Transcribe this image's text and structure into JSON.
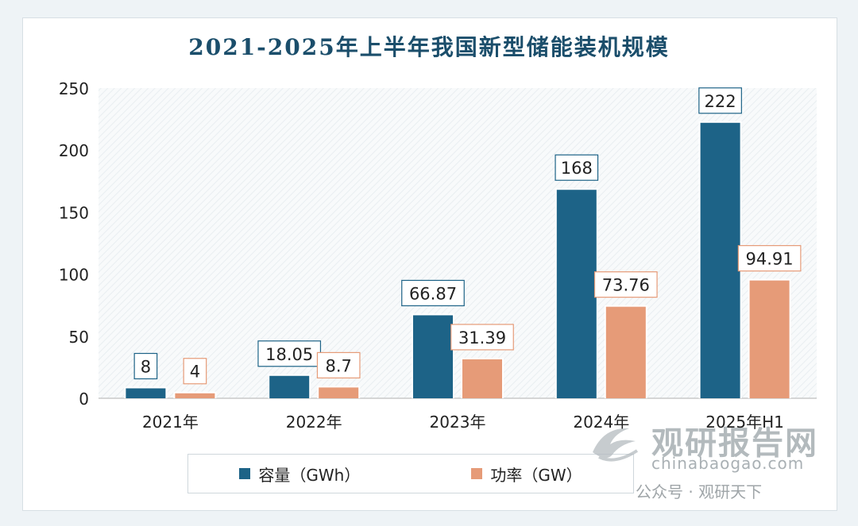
{
  "chart_data": {
    "type": "bar",
    "title": "2021-2025年上半年我国新型储能装机规模",
    "categories": [
      "2021年",
      "2022年",
      "2023年",
      "2024年",
      "2025年H1"
    ],
    "series": [
      {
        "name": "容量（GWh）",
        "color": "#1d6387",
        "values": [
          8,
          18.05,
          66.87,
          168,
          222
        ],
        "labels": [
          "8",
          "18.05",
          "66.87",
          "168",
          "222"
        ]
      },
      {
        "name": "功率（GW）",
        "color": "#e69b78",
        "values": [
          4,
          8.7,
          31.39,
          73.76,
          94.91
        ],
        "labels": [
          "4",
          "8.7",
          "31.39",
          "73.76",
          "94.91"
        ]
      }
    ],
    "yticks": [
      "0",
      "50",
      "100",
      "150",
      "200",
      "250"
    ],
    "ylim": [
      0,
      250
    ],
    "xlabel": "",
    "ylabel": "",
    "legend_position": "bottom"
  },
  "watermark": {
    "brand": "观研报告网",
    "domain": "chinabaogao.com",
    "account": "公众号 · 观研天下"
  }
}
